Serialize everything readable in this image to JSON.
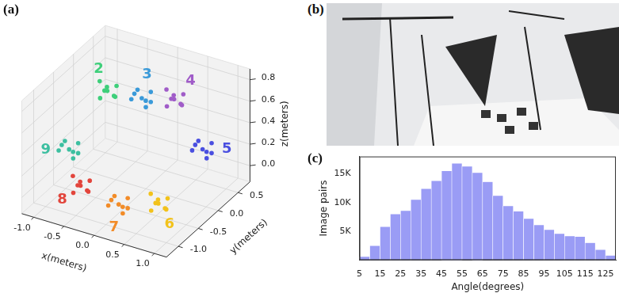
{
  "chart_data": [
    {
      "type": "scatter3d",
      "panel": "(a)",
      "x_label": "x(meters)",
      "y_label": "y(meters)",
      "z_label": "z(meters)",
      "xlim": [
        -1.2,
        1.2
      ],
      "ylim": [
        -1.3,
        0.8
      ],
      "zlim": [
        -0.15,
        0.9
      ],
      "xticks": [
        {
          "value": -1,
          "label": "-1.0"
        },
        -0.5,
        {
          "value": 0,
          "label": "0.0"
        },
        0.5,
        {
          "value": 1,
          "label": "1.0"
        }
      ],
      "yticks": [
        {
          "value": -1,
          "label": "-1.0"
        },
        -0.5,
        {
          "value": 0,
          "label": "0.0"
        },
        0.5
      ],
      "zticks": [
        {
          "value": 0,
          "label": "0.0"
        },
        0.2,
        0.4,
        0.6,
        0.8
      ],
      "grid": true,
      "series": [
        {
          "name": "2",
          "color": "#3ecf7a",
          "values": [
            [
              -0.79,
              0.23,
              0.55
            ],
            [
              -0.67,
              0.28,
              0.6
            ],
            [
              -0.89,
              0.31,
              0.51
            ],
            [
              -0.73,
              0.13,
              0.63
            ],
            [
              -0.87,
              0.17,
              0.49
            ],
            [
              -0.64,
              0.2,
              0.53
            ],
            [
              -0.93,
              0.25,
              0.61
            ],
            [
              -0.76,
              0.35,
              0.47
            ]
          ]
        },
        {
          "name": "3",
          "color": "#3a9ad9",
          "values": [
            [
              -0.41,
              0.52,
              0.45
            ],
            [
              -0.52,
              0.58,
              0.49
            ],
            [
              -0.32,
              0.61,
              0.4
            ],
            [
              -0.46,
              0.41,
              0.52
            ],
            [
              -0.31,
              0.47,
              0.4
            ],
            [
              -0.57,
              0.5,
              0.42
            ],
            [
              -0.28,
              0.55,
              0.52
            ],
            [
              -0.43,
              0.65,
              0.38
            ]
          ]
        },
        {
          "name": "4",
          "color": "#a05cc8",
          "values": [
            [
              0.08,
              0.59,
              0.5
            ],
            [
              0.2,
              0.64,
              0.55
            ],
            [
              -0.02,
              0.67,
              0.46
            ],
            [
              0.14,
              0.49,
              0.58
            ],
            [
              0,
              0.53,
              0.44
            ],
            [
              0.23,
              0.56,
              0.48
            ],
            [
              -0.06,
              0.61,
              0.56
            ],
            [
              0.11,
              0.71,
              0.42
            ]
          ]
        },
        {
          "name": "5",
          "color": "#4a4fe0",
          "values": [
            [
              0.83,
              0.17,
              0.3
            ],
            [
              0.72,
              0.23,
              0.34
            ],
            [
              0.92,
              0.26,
              0.25
            ],
            [
              0.78,
              0.06,
              0.37
            ],
            [
              0.93,
              0.12,
              0.25
            ],
            [
              0.67,
              0.15,
              0.27
            ],
            [
              0.96,
              0.2,
              0.37
            ],
            [
              0.81,
              0.3,
              0.23
            ]
          ]
        },
        {
          "name": "6",
          "color": "#f2c21b",
          "values": [
            [
              0.73,
              -0.79,
              0.1
            ],
            [
              0.85,
              -0.74,
              0.15
            ],
            [
              0.63,
              -0.71,
              0.06
            ],
            [
              0.79,
              -0.89,
              0.18
            ],
            [
              0.65,
              -0.85,
              0.04
            ],
            [
              0.88,
              -0.82,
              0.08
            ],
            [
              0.59,
              -0.77,
              0.16
            ],
            [
              0.76,
              -0.67,
              0.02
            ]
          ]
        },
        {
          "name": "7",
          "color": "#f28c28",
          "values": [
            [
              0.25,
              -1.06,
              0.1
            ],
            [
              0.14,
              -1,
              0.14
            ],
            [
              0.34,
              -0.97,
              0.05
            ],
            [
              0.2,
              -1.17,
              0.17
            ],
            [
              0.35,
              -1.11,
              0.05
            ],
            [
              0.09,
              -1.08,
              0.07
            ],
            [
              0.38,
              -1.03,
              0.17
            ],
            [
              0.23,
              -0.93,
              0.03
            ]
          ]
        },
        {
          "name": "8",
          "color": "#e2453c",
          "values": [
            [
              -0.41,
              -1.02,
              0.15
            ],
            [
              -0.29,
              -0.97,
              0.2
            ],
            [
              -0.51,
              -0.94,
              0.11
            ],
            [
              -0.35,
              -1.12,
              0.23
            ],
            [
              -0.49,
              -1.08,
              0.09
            ],
            [
              -0.26,
              -1.05,
              0.13
            ],
            [
              -0.55,
              -1,
              0.21
            ],
            [
              -0.38,
              -0.9,
              0.07
            ]
          ]
        },
        {
          "name": "9",
          "color": "#3cbfa0",
          "values": [
            [
              -0.83,
              -0.67,
              0.3
            ],
            [
              -0.94,
              -0.61,
              0.34
            ],
            [
              -0.74,
              -0.58,
              0.25
            ],
            [
              -0.88,
              -0.78,
              0.37
            ],
            [
              -0.73,
              -0.72,
              0.25
            ],
            [
              -0.99,
              -0.69,
              0.27
            ],
            [
              -0.7,
              -0.64,
              0.37
            ],
            [
              -0.85,
              -0.54,
              0.23
            ]
          ]
        }
      ]
    },
    {
      "type": "histogram",
      "panel": "(c)",
      "x_label": "Angle(degrees)",
      "y_label": "Image pairs",
      "bins": [
        5,
        10,
        15,
        20,
        25,
        30,
        35,
        40,
        45,
        50,
        55,
        60,
        65,
        70,
        75,
        80,
        85,
        90,
        95,
        100,
        105,
        110,
        115,
        120,
        125,
        130
      ],
      "values": [
        600,
        2500,
        5800,
        8000,
        8600,
        10500,
        12400,
        13800,
        15500,
        16800,
        16300,
        15200,
        13600,
        11200,
        9400,
        8500,
        7200,
        6100,
        5300,
        4600,
        4200,
        4100,
        3000,
        1800,
        800
      ],
      "color": "#9a9cf5",
      "xlim": [
        5,
        130
      ],
      "ylim": [
        0,
        18000
      ],
      "xticks": [
        5,
        15,
        25,
        35,
        45,
        55,
        65,
        75,
        85,
        95,
        105,
        115,
        125
      ],
      "yticks": [
        {
          "value": 5000,
          "label": "5K"
        },
        {
          "value": 10000,
          "label": "10K"
        },
        {
          "value": 15000,
          "label": "15K"
        }
      ],
      "grid": false
    }
  ],
  "image_panel": {
    "label": "(b)"
  }
}
